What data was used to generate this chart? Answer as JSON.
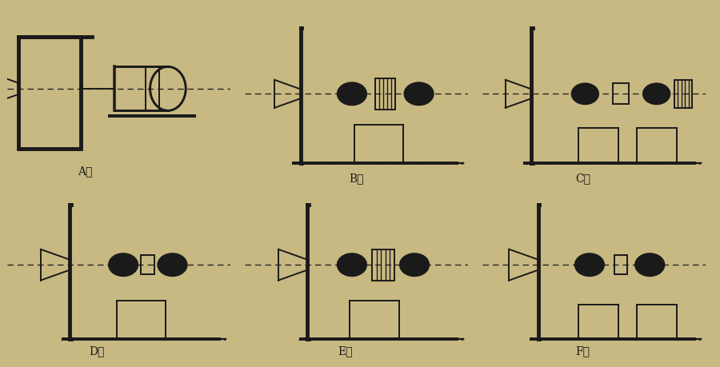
{
  "bg_color": "#c8b882",
  "line_color": "#1a1a1a",
  "labels": [
    "A式",
    "B式",
    "C式",
    "D式",
    "E式",
    "F式"
  ],
  "label_fontsize": 10,
  "figsize": [
    9.0,
    4.59
  ],
  "dpi": 100
}
